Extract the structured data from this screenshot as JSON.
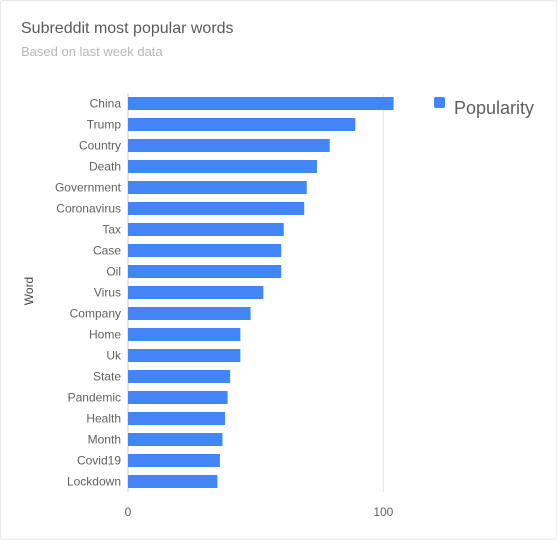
{
  "chart_data": {
    "type": "bar",
    "orientation": "horizontal",
    "title": "Subreddit most popular words",
    "subtitle": "Based on last week data",
    "ylabel": "Word",
    "xlabel": "",
    "categories": [
      "China",
      "Trump",
      "Country",
      "Death",
      "Government",
      "Coronavirus",
      "Tax",
      "Case",
      "Oil",
      "Virus",
      "Company",
      "Home",
      "Uk",
      "State",
      "Pandemic",
      "Health",
      "Month",
      "Covid19",
      "Lockdown"
    ],
    "series": [
      {
        "name": "Popularity",
        "values": [
          104,
          89,
          79,
          74,
          70,
          69,
          61,
          60,
          60,
          53,
          48,
          44,
          44,
          40,
          39,
          38,
          37,
          36,
          35
        ]
      }
    ],
    "xlim": [
      0,
      150
    ],
    "xticks": [
      "0",
      "100"
    ],
    "color": "#4285f4",
    "grid": true,
    "legend_position": "top-right"
  }
}
